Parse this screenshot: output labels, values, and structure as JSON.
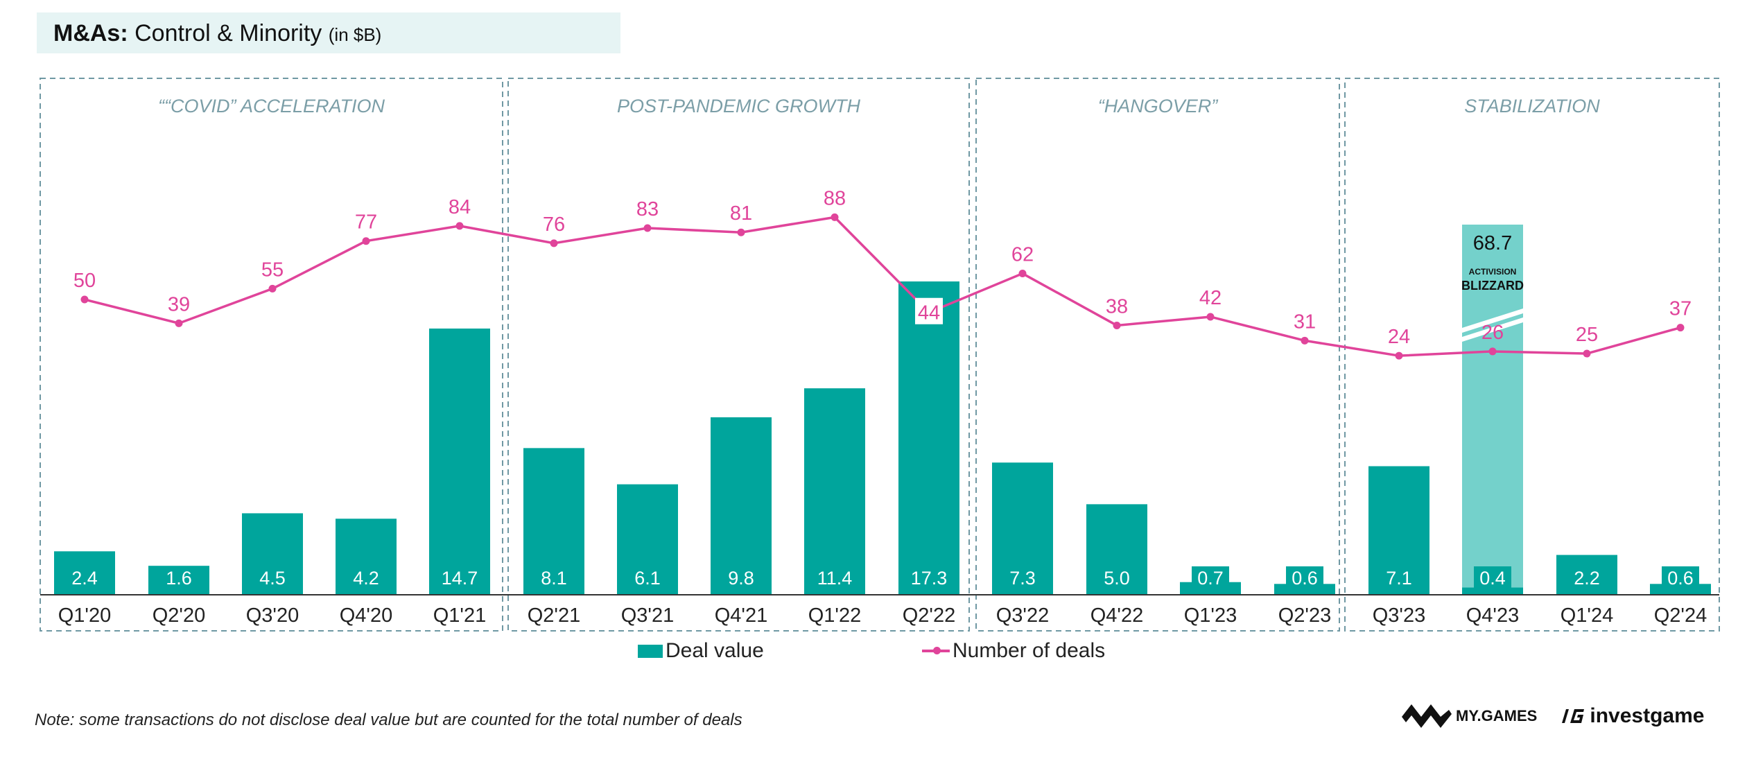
{
  "header": {
    "title_bold": "M&As:",
    "title_rest": " Control & Minority ",
    "title_unit": "(in $B)"
  },
  "chart_data": {
    "type": "bar+line",
    "categories": [
      "Q1'20",
      "Q2'20",
      "Q3'20",
      "Q4'20",
      "Q1'21",
      "Q2'21",
      "Q3'21",
      "Q4'21",
      "Q1'22",
      "Q2'22",
      "Q3'22",
      "Q4'22",
      "Q1'23",
      "Q2'23",
      "Q3'23",
      "Q4'23",
      "Q1'24",
      "Q2'24"
    ],
    "series": [
      {
        "name": "Deal value",
        "type": "bar",
        "values": [
          2.4,
          1.6,
          4.5,
          4.2,
          14.7,
          8.1,
          6.1,
          9.8,
          11.4,
          17.3,
          7.3,
          5.0,
          0.7,
          0.6,
          7.1,
          0.4,
          2.2,
          0.6
        ]
      },
      {
        "name": "Number of deals",
        "type": "line",
        "values": [
          50,
          39,
          55,
          77,
          84,
          76,
          83,
          81,
          88,
          44,
          62,
          38,
          42,
          31,
          24,
          26,
          25,
          37
        ]
      }
    ],
    "highlight": {
      "category": "Q4'23",
      "value": 68.7,
      "label": "68.7",
      "logo": "Activision Blizzard",
      "logo_text_1": "ACTIVISION",
      "logo_text_2": "BLIZZARD"
    },
    "periods": [
      {
        "label": "““COVID” ACCELERATION",
        "start": 0,
        "end": 4
      },
      {
        "label": "POST-PANDEMIC GROWTH",
        "start": 5,
        "end": 9
      },
      {
        "label": "“HANGOVER”",
        "start": 10,
        "end": 13
      },
      {
        "label": "STABILIZATION",
        "start": 14,
        "end": 17
      }
    ],
    "colors": {
      "bar": "#00a59c",
      "highlight_bar": "#74d1cb",
      "line": "#e0449a",
      "period_border": "#6f98a3",
      "period_text": "#7b9ea7"
    },
    "axis_break": true,
    "legend_position": "bottom"
  },
  "legend": {
    "bars_label": "Deal value",
    "line_label": "Number of deals"
  },
  "footer": {
    "note": "Note: some transactions do not disclose deal value but are counted for the total number of deals",
    "logo1": "MY.GAMES",
    "logo2": "investgame"
  }
}
